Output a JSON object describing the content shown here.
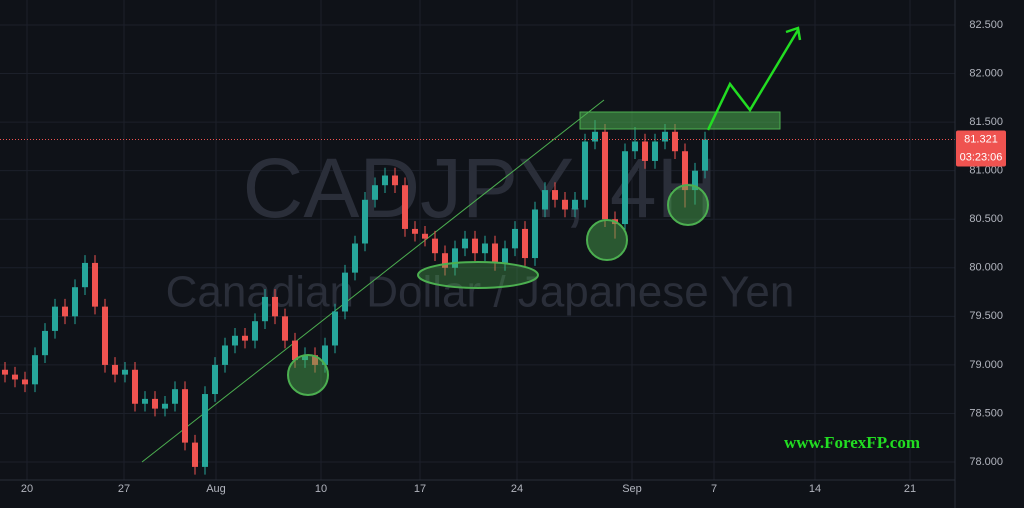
{
  "chart_data": {
    "type": "candlestick",
    "title": "CADJPY, 4H",
    "subtitle": "Canadian Dollar / Japanese Yen",
    "annotation": "www.ForexFP.com",
    "last_price": {
      "value": 81.321,
      "label": "81.321"
    },
    "countdown": "03:23:06",
    "up_color": "#26a69a",
    "down_color": "#ef5350",
    "xlim": [
      0,
      95.5
    ],
    "ylim": [
      77.815,
      82.757
    ],
    "xticks": [
      {
        "value": 2.7,
        "label": "20"
      },
      {
        "value": 12.4,
        "label": "27"
      },
      {
        "value": 21.6,
        "label": "Aug"
      },
      {
        "value": 32.1,
        "label": "10"
      },
      {
        "value": 42,
        "label": "17"
      },
      {
        "value": 51.7,
        "label": "24"
      },
      {
        "value": 63.2,
        "label": "Sep"
      },
      {
        "value": 71.4,
        "label": "7"
      },
      {
        "value": 81.5,
        "label": "14"
      },
      {
        "value": 91,
        "label": "21"
      }
    ],
    "yticks": [
      {
        "value": 78,
        "label": "78.000"
      },
      {
        "value": 78.5,
        "label": "78.500"
      },
      {
        "value": 79,
        "label": "79.000"
      },
      {
        "value": 79.5,
        "label": "79.500"
      },
      {
        "value": 80,
        "label": "80.000"
      },
      {
        "value": 80.5,
        "label": "80.500"
      },
      {
        "value": 81,
        "label": "81.000"
      },
      {
        "value": 81.5,
        "label": "81.500"
      },
      {
        "value": 82,
        "label": "82.000"
      },
      {
        "value": 82.5,
        "label": "82.500"
      }
    ],
    "x": [
      0.5,
      1.5,
      2.5,
      3.5,
      4.5,
      5.5,
      6.5,
      7.5,
      8.5,
      9.5,
      10.5,
      11.5,
      12.5,
      13.5,
      14.5,
      15.5,
      16.5,
      17.5,
      18.5,
      19.5,
      20.5,
      21.5,
      22.5,
      23.5,
      24.5,
      25.5,
      26.5,
      27.5,
      28.5,
      29.5,
      30.5,
      31.5,
      32.5,
      33.5,
      34.5,
      35.5,
      36.5,
      37.5,
      38.5,
      39.5,
      40.5,
      41.5,
      42.5,
      43.5,
      44.5,
      45.5,
      46.5,
      47.5,
      48.5,
      49.5,
      50.5,
      51.5,
      52.5,
      53.5,
      54.5,
      55.5,
      56.5,
      57.5,
      58.5,
      59.5,
      60.5,
      61.5,
      62.5,
      63.5,
      64.5,
      65.5,
      66.5,
      67.5,
      68.5,
      69.5,
      70.5
    ],
    "open": [
      78.95,
      78.9,
      78.85,
      78.8,
      79.1,
      79.35,
      79.6,
      79.5,
      79.8,
      80.05,
      79.6,
      79.0,
      78.9,
      78.95,
      78.6,
      78.65,
      78.55,
      78.6,
      78.75,
      78.2,
      77.95,
      78.7,
      79.0,
      79.2,
      79.3,
      79.25,
      79.45,
      79.7,
      79.5,
      79.25,
      79.05,
      79.1,
      79.0,
      79.2,
      79.55,
      79.95,
      80.25,
      80.7,
      80.85,
      80.95,
      80.85,
      80.4,
      80.35,
      80.3,
      80.15,
      80.0,
      80.2,
      80.3,
      80.15,
      80.25,
      80.05,
      80.2,
      80.4,
      80.1,
      80.6,
      80.8,
      80.7,
      80.6,
      80.7,
      81.3,
      81.4,
      80.5,
      80.45,
      81.2,
      81.3,
      81.1,
      81.3,
      81.4,
      81.2,
      80.8,
      81.0
    ],
    "high": [
      79.03,
      78.98,
      78.93,
      79.18,
      79.43,
      79.68,
      79.68,
      79.88,
      80.13,
      80.13,
      79.68,
      79.08,
      79.03,
      79.03,
      78.73,
      78.73,
      78.68,
      78.83,
      78.83,
      78.28,
      78.78,
      79.08,
      79.28,
      79.38,
      79.38,
      79.53,
      79.78,
      79.78,
      79.58,
      79.33,
      79.18,
      79.18,
      79.28,
      79.63,
      80.03,
      80.33,
      80.78,
      80.93,
      81.03,
      81.03,
      80.93,
      80.48,
      80.43,
      80.38,
      80.23,
      80.28,
      80.38,
      80.38,
      80.33,
      80.33,
      80.28,
      80.48,
      80.48,
      80.68,
      80.88,
      80.88,
      80.78,
      80.78,
      81.38,
      81.52,
      81.48,
      80.58,
      81.28,
      81.45,
      81.38,
      81.38,
      81.48,
      81.48,
      81.28,
      81.08,
      81.4
    ],
    "low": [
      78.82,
      78.77,
      78.72,
      78.72,
      79.02,
      79.27,
      79.42,
      79.42,
      79.72,
      79.52,
      78.92,
      78.82,
      78.82,
      78.52,
      78.52,
      78.47,
      78.47,
      78.52,
      78.12,
      77.87,
      77.87,
      78.62,
      78.92,
      79.12,
      79.17,
      79.17,
      79.37,
      79.42,
      79.17,
      78.97,
      78.97,
      78.92,
      78.92,
      79.12,
      79.47,
      79.87,
      80.17,
      80.62,
      80.77,
      80.77,
      80.32,
      80.27,
      80.22,
      80.07,
      79.92,
      79.92,
      80.12,
      80.07,
      80.07,
      79.97,
      79.97,
      80.12,
      80.02,
      80.02,
      80.52,
      80.62,
      80.52,
      80.52,
      80.62,
      81.22,
      80.42,
      80.3,
      80.37,
      81.12,
      81.02,
      81.02,
      81.22,
      81.12,
      80.62,
      80.65,
      80.92
    ],
    "close": [
      78.9,
      78.85,
      78.8,
      79.1,
      79.35,
      79.6,
      79.5,
      79.8,
      80.05,
      79.6,
      79.0,
      78.9,
      78.95,
      78.6,
      78.65,
      78.55,
      78.6,
      78.75,
      78.2,
      77.95,
      78.7,
      79.0,
      79.2,
      79.3,
      79.25,
      79.45,
      79.7,
      79.5,
      79.25,
      79.05,
      79.1,
      79.0,
      79.2,
      79.55,
      79.95,
      80.25,
      80.7,
      80.85,
      80.95,
      80.85,
      80.4,
      80.35,
      80.3,
      80.15,
      80.0,
      80.2,
      80.3,
      80.15,
      80.25,
      80.05,
      80.2,
      80.4,
      80.1,
      80.6,
      80.8,
      80.7,
      80.6,
      80.7,
      81.3,
      81.4,
      80.5,
      80.45,
      81.2,
      81.3,
      81.1,
      81.3,
      81.4,
      81.2,
      80.8,
      81.0,
      81.32
    ]
  }
}
